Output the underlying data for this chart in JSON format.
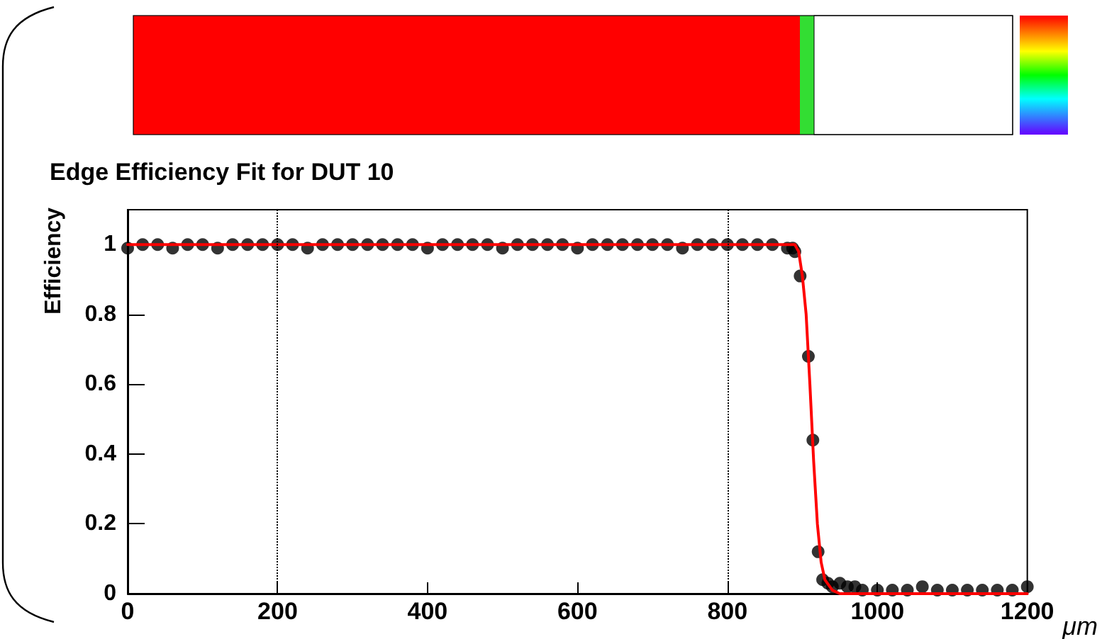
{
  "chart_data": {
    "type": "scatter",
    "title": "Edge Efficiency Fit for DUT 10",
    "xlabel": "μm",
    "ylabel": "Efficiency",
    "xlim": [
      0,
      1200
    ],
    "xticks": [
      0,
      200,
      400,
      600,
      800,
      1000,
      1200
    ],
    "ylim": [
      0,
      1.1
    ],
    "yticks": [
      0,
      0.2,
      0.4,
      0.6,
      0.8,
      1
    ],
    "grid": false,
    "marker": "circle",
    "ref_lines": [
      {
        "axis": "x",
        "value": 200,
        "line_style": "dotted",
        "color": "#000000"
      },
      {
        "axis": "x",
        "value": 800,
        "line_style": "dotted",
        "color": "#000000"
      }
    ],
    "series": [
      {
        "color": "#000000",
        "x": [
          0,
          20,
          40,
          60,
          80,
          100,
          120,
          140,
          160,
          180,
          200,
          220,
          240,
          260,
          280,
          300,
          320,
          340,
          360,
          380,
          400,
          420,
          440,
          460,
          480,
          500,
          520,
          540,
          560,
          580,
          600,
          620,
          640,
          660,
          680,
          700,
          720,
          740,
          760,
          780,
          800,
          820,
          840,
          860,
          880,
          887,
          890,
          897,
          908,
          914,
          921,
          927,
          934,
          940,
          950,
          960,
          970,
          980,
          1000,
          1020,
          1040,
          1060,
          1080,
          1100,
          1120,
          1140,
          1160,
          1180,
          1200
        ],
        "values": [
          0.99,
          1,
          1,
          0.99,
          1,
          1,
          0.99,
          1,
          1,
          1,
          1,
          1,
          0.99,
          1,
          1,
          1,
          1,
          1,
          1,
          1,
          0.99,
          1,
          1,
          1,
          1,
          0.99,
          1,
          1,
          1,
          1,
          0.99,
          1,
          1,
          1,
          1,
          1,
          1,
          0.99,
          1,
          1,
          1,
          1,
          1,
          1,
          0.99,
          0.99,
          0.98,
          0.91,
          0.68,
          0.44,
          0.12,
          0.04,
          0.03,
          0.02,
          0.03,
          0.02,
          0.02,
          0.01,
          0.01,
          0.01,
          0.01,
          0.02,
          0.01,
          0.01,
          0.01,
          0.01,
          0.01,
          0.01,
          0.02
        ]
      },
      {
        "type": "line",
        "color": "#ff0000",
        "line_style": "solid",
        "marker": "none",
        "x": [
          0,
          890,
          895,
          900,
          905,
          910,
          915,
          920,
          925,
          930,
          940,
          950,
          1200
        ],
        "values": [
          1,
          1,
          0.98,
          0.91,
          0.8,
          0.6,
          0.38,
          0.2,
          0.09,
          0.04,
          0.01,
          0,
          0
        ]
      }
    ]
  }
}
